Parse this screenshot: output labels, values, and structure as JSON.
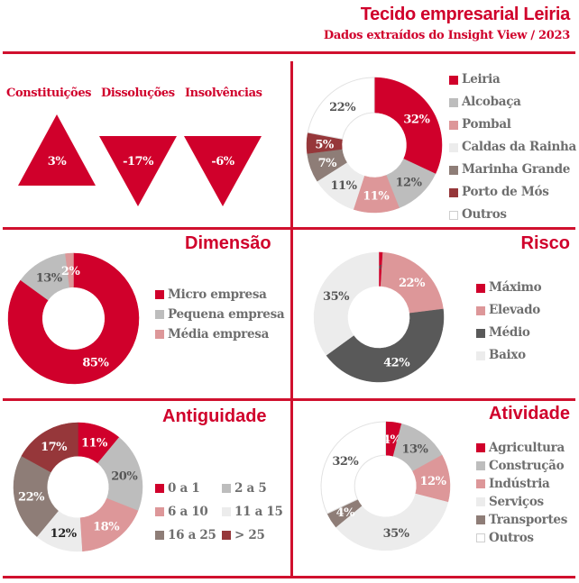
{
  "header": {
    "title": "Tecido empresarial Leiria",
    "subtitle": "Dados extraídos do Insight View / 2023"
  },
  "colors": {
    "accent": "#d0002b",
    "red": "#d0002b",
    "gray": "#bdbdbd",
    "pink": "#dd9799",
    "light": "#ececec",
    "taupe": "#8e7d77",
    "darkred": "#96373a",
    "white": "#ffffff",
    "dark": "#595959"
  },
  "indicators": [
    {
      "label": "Constituições",
      "value": "3%",
      "direction": "up"
    },
    {
      "label": "Dissoluções",
      "value": "-17%",
      "direction": "down"
    },
    {
      "label": "Insolvências",
      "value": "-6%",
      "direction": "down"
    }
  ],
  "chart_data": [
    {
      "id": "concelho",
      "type": "pie",
      "title": "",
      "categories": [
        "Leiria",
        "Alcobaça",
        "Pombal",
        "Caldas da Rainha",
        "Marinha Grande",
        "Porto de Mós",
        "Outros"
      ],
      "values": [
        32,
        12,
        11,
        11,
        7,
        5,
        22
      ],
      "labels": [
        "32%",
        "12%",
        "11%",
        "11%",
        "7%",
        "5%",
        "22%"
      ],
      "colors": [
        "#d0002b",
        "#bdbdbd",
        "#dd9799",
        "#ececec",
        "#8e7d77",
        "#96373a",
        "#ffffff"
      ],
      "label_colors": [
        "#ffffff",
        "#555555",
        "#ffffff",
        "#555555",
        "#ffffff",
        "#ffffff",
        "#555555"
      ],
      "legend_position": "right"
    },
    {
      "id": "dimensao",
      "type": "pie",
      "title": "Dimensão",
      "categories": [
        "Micro empresa",
        "Pequena empresa",
        "Média empresa"
      ],
      "values": [
        85,
        13,
        2
      ],
      "labels": [
        "85%",
        "13%",
        "2%"
      ],
      "colors": [
        "#d0002b",
        "#bdbdbd",
        "#dd9799"
      ],
      "label_colors": [
        "#ffffff",
        "#555555",
        "#ffffff"
      ],
      "legend_position": "right"
    },
    {
      "id": "risco",
      "type": "pie",
      "title": "Risco",
      "categories": [
        "Máximo",
        "Elevado",
        "Médio",
        "Baixo"
      ],
      "values": [
        1,
        22,
        42,
        35
      ],
      "labels": [
        "1%",
        "22%",
        "42%",
        "35%"
      ],
      "colors": [
        "#d0002b",
        "#dd9799",
        "#595959",
        "#ececec"
      ],
      "label_colors": [
        "#555555",
        "#ffffff",
        "#ffffff",
        "#555555"
      ],
      "legend_position": "right"
    },
    {
      "id": "antiguidade",
      "type": "pie",
      "title": "Antiguidade",
      "categories": [
        "0 a 1",
        "2 a 5",
        "6 a 10",
        "11 a 15",
        "16 a 25",
        "> 25"
      ],
      "values": [
        11,
        20,
        18,
        12,
        22,
        17
      ],
      "labels": [
        "11%",
        "20%",
        "18%",
        "12%",
        "22%",
        "17%"
      ],
      "colors": [
        "#d0002b",
        "#bdbdbd",
        "#dd9799",
        "#ececec",
        "#8e7d77",
        "#96373a"
      ],
      "label_colors": [
        "#ffffff",
        "#555555",
        "#ffffff",
        "#222222",
        "#ffffff",
        "#ffffff"
      ],
      "legend_position": "right"
    },
    {
      "id": "atividade",
      "type": "pie",
      "title": "Atividade",
      "categories": [
        "Agricultura",
        "Construção",
        "Indústria",
        "Serviços",
        "Transportes",
        "Outros"
      ],
      "values": [
        4,
        13,
        12,
        35,
        4,
        32
      ],
      "labels": [
        "4%",
        "13%",
        "12%",
        "35%",
        "4%",
        "32%"
      ],
      "colors": [
        "#d0002b",
        "#bdbdbd",
        "#dd9799",
        "#ececec",
        "#8e7d77",
        "#ffffff"
      ],
      "label_colors": [
        "#ffffff",
        "#555555",
        "#ffffff",
        "#555555",
        "#ffffff",
        "#555555"
      ],
      "legend_position": "right"
    }
  ]
}
